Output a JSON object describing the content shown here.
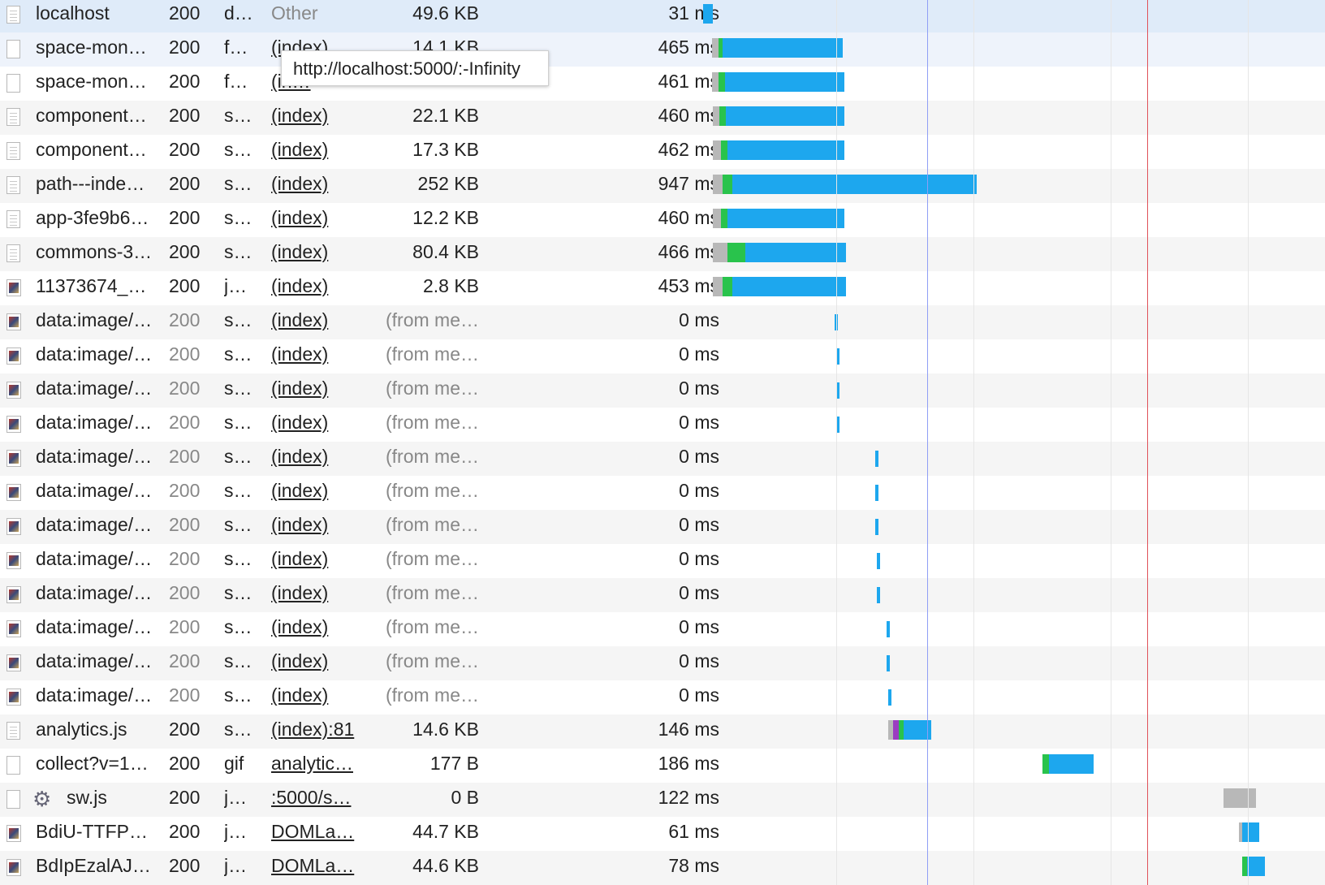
{
  "tooltip": "http://localhost:5000/:-Infinity",
  "colors": {
    "waterfall_blue": "#1da7ee",
    "waterfall_green": "#29c34c",
    "waterfall_gray": "#b8b8b8",
    "waterfall_purple": "#9b3cc1",
    "dom_content_loaded_line": "#8f9ef5",
    "load_line": "#e0525a",
    "selected_row": "#dfebf9"
  },
  "requests": [
    {
      "name": "localhost",
      "status": "200",
      "type": "d…",
      "initiator": "Other",
      "size": "49.6 KB",
      "time": "31 ms",
      "icon": "document-icon",
      "selected": true
    },
    {
      "name": "space-mon…",
      "status": "200",
      "type": "f…",
      "initiator": "(index)",
      "size": "14.1 KB",
      "time": "465 ms",
      "icon": "file-icon"
    },
    {
      "name": "space-mon…",
      "status": "200",
      "type": "f…",
      "initiator": "(in…",
      "size": "",
      "time": "461 ms",
      "icon": "file-icon"
    },
    {
      "name": "component…",
      "status": "200",
      "type": "s…",
      "initiator": "(index)",
      "size": "22.1 KB",
      "time": "460 ms",
      "icon": "script-icon"
    },
    {
      "name": "component…",
      "status": "200",
      "type": "s…",
      "initiator": "(index)",
      "size": "17.3 KB",
      "time": "462 ms",
      "icon": "script-icon"
    },
    {
      "name": "path---inde…",
      "status": "200",
      "type": "s…",
      "initiator": "(index)",
      "size": "252 KB",
      "time": "947 ms",
      "icon": "script-icon"
    },
    {
      "name": "app-3fe9b6…",
      "status": "200",
      "type": "s…",
      "initiator": "(index)",
      "size": "12.2 KB",
      "time": "460 ms",
      "icon": "script-icon"
    },
    {
      "name": "commons-3…",
      "status": "200",
      "type": "s…",
      "initiator": "(index)",
      "size": "80.4 KB",
      "time": "466 ms",
      "icon": "script-icon"
    },
    {
      "name": "11373674_…",
      "status": "200",
      "type": "j…",
      "initiator": "(index)",
      "size": "2.8 KB",
      "time": "453 ms",
      "icon": "image-thumbnail-icon"
    },
    {
      "name": "data:image/…",
      "status": "200",
      "type": "s…",
      "initiator": "(index)",
      "size": "(from me…",
      "time": "0 ms",
      "icon": "image-thumbnail-icon",
      "muted": true
    },
    {
      "name": "data:image/…",
      "status": "200",
      "type": "s…",
      "initiator": "(index)",
      "size": "(from me…",
      "time": "0 ms",
      "icon": "image-thumbnail-icon",
      "muted": true
    },
    {
      "name": "data:image/…",
      "status": "200",
      "type": "s…",
      "initiator": "(index)",
      "size": "(from me…",
      "time": "0 ms",
      "icon": "image-thumbnail-icon",
      "muted": true
    },
    {
      "name": "data:image/…",
      "status": "200",
      "type": "s…",
      "initiator": "(index)",
      "size": "(from me…",
      "time": "0 ms",
      "icon": "image-thumbnail-icon",
      "muted": true
    },
    {
      "name": "data:image/…",
      "status": "200",
      "type": "s…",
      "initiator": "(index)",
      "size": "(from me…",
      "time": "0 ms",
      "icon": "image-thumbnail-icon",
      "muted": true
    },
    {
      "name": "data:image/…",
      "status": "200",
      "type": "s…",
      "initiator": "(index)",
      "size": "(from me…",
      "time": "0 ms",
      "icon": "image-thumbnail-icon",
      "muted": true
    },
    {
      "name": "data:image/…",
      "status": "200",
      "type": "s…",
      "initiator": "(index)",
      "size": "(from me…",
      "time": "0 ms",
      "icon": "image-thumbnail-icon",
      "muted": true
    },
    {
      "name": "data:image/…",
      "status": "200",
      "type": "s…",
      "initiator": "(index)",
      "size": "(from me…",
      "time": "0 ms",
      "icon": "image-thumbnail-icon",
      "muted": true
    },
    {
      "name": "data:image/…",
      "status": "200",
      "type": "s…",
      "initiator": "(index)",
      "size": "(from me…",
      "time": "0 ms",
      "icon": "image-thumbnail-icon",
      "muted": true
    },
    {
      "name": "data:image/…",
      "status": "200",
      "type": "s…",
      "initiator": "(index)",
      "size": "(from me…",
      "time": "0 ms",
      "icon": "image-thumbnail-icon",
      "muted": true
    },
    {
      "name": "data:image/…",
      "status": "200",
      "type": "s…",
      "initiator": "(index)",
      "size": "(from me…",
      "time": "0 ms",
      "icon": "image-thumbnail-icon",
      "muted": true
    },
    {
      "name": "data:image/…",
      "status": "200",
      "type": "s…",
      "initiator": "(index)",
      "size": "(from me…",
      "time": "0 ms",
      "icon": "image-thumbnail-icon",
      "muted": true
    },
    {
      "name": "analytics.js",
      "status": "200",
      "type": "s…",
      "initiator": "(index):81",
      "size": "14.6 KB",
      "time": "146 ms",
      "icon": "script-icon"
    },
    {
      "name": "collect?v=1…",
      "status": "200",
      "type": "gif",
      "initiator": "analytic…",
      "size": "177 B",
      "time": "186 ms",
      "icon": "file-icon"
    },
    {
      "name": "sw.js",
      "status": "200",
      "type": "j…",
      "initiator": ":5000/s…",
      "size": "0 B",
      "time": "122 ms",
      "icon": "gear-icon"
    },
    {
      "name": "BdiU-TTFP…",
      "status": "200",
      "type": "j…",
      "initiator": "DOMLa…",
      "size": "44.7 KB",
      "time": "61 ms",
      "icon": "image-thumbnail-icon"
    },
    {
      "name": "BdIpEzalAJ…",
      "status": "200",
      "type": "j…",
      "initiator": "DOMLa…",
      "size": "44.6 KB",
      "time": "78 ms",
      "icon": "image-thumbnail-icon"
    }
  ]
}
